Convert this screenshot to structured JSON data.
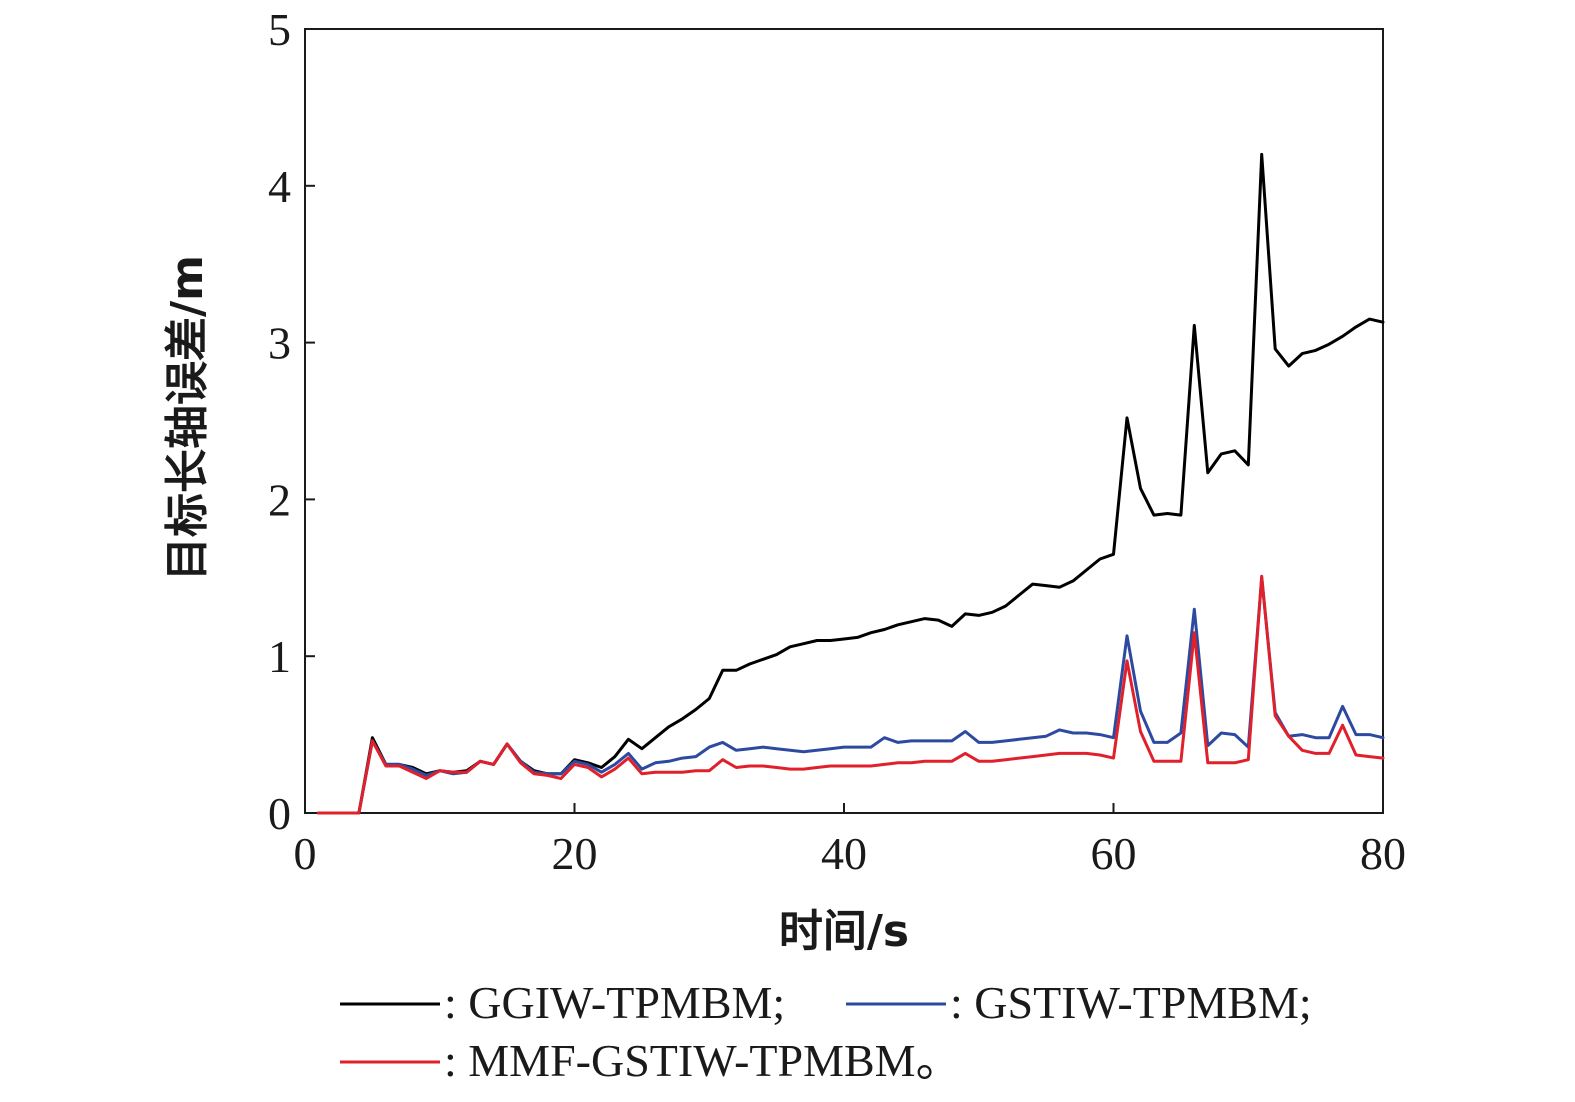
{
  "chart_data": {
    "type": "line",
    "title": "",
    "xlabel": "时间/s",
    "ylabel": "目标长轴误差/m",
    "xlim": [
      0,
      80
    ],
    "ylim": [
      0,
      5
    ],
    "xticks": [
      0,
      20,
      40,
      60,
      80
    ],
    "yticks": [
      0,
      1,
      2,
      3,
      4,
      5
    ],
    "xtick_labels": [
      "0",
      "20",
      "40",
      "60",
      "80"
    ],
    "ytick_labels": [
      "0",
      "1",
      "2",
      "3",
      "4",
      "5"
    ],
    "grid": false,
    "legend_position": "bottom",
    "x": [
      1,
      2,
      3,
      4,
      5,
      6,
      7,
      8,
      9,
      10,
      11,
      12,
      13,
      14,
      15,
      16,
      17,
      18,
      19,
      20,
      21,
      22,
      23,
      24,
      25,
      26,
      27,
      28,
      29,
      30,
      31,
      32,
      33,
      34,
      35,
      36,
      37,
      38,
      39,
      40,
      41,
      42,
      43,
      44,
      45,
      46,
      47,
      48,
      49,
      50,
      51,
      52,
      53,
      54,
      55,
      56,
      57,
      58,
      59,
      60,
      61,
      62,
      63,
      64,
      65,
      66,
      67,
      68,
      69,
      70,
      71,
      72,
      73,
      74,
      75,
      76,
      77,
      78,
      79,
      80
    ],
    "series": [
      {
        "name": "GGIW-TPMBM",
        "color": "#000000",
        "values": [
          0,
          0,
          0,
          0,
          0.48,
          0.31,
          0.31,
          0.29,
          0.25,
          0.27,
          0.26,
          0.27,
          0.33,
          0.31,
          0.44,
          0.33,
          0.27,
          0.25,
          0.25,
          0.34,
          0.32,
          0.29,
          0.36,
          0.47,
          0.41,
          0.48,
          0.55,
          0.6,
          0.66,
          0.73,
          0.91,
          0.91,
          0.95,
          0.98,
          1.01,
          1.06,
          1.08,
          1.1,
          1.1,
          1.11,
          1.12,
          1.15,
          1.17,
          1.2,
          1.22,
          1.24,
          1.23,
          1.19,
          1.27,
          1.26,
          1.28,
          1.32,
          1.39,
          1.46,
          1.45,
          1.44,
          1.48,
          1.55,
          1.62,
          1.65,
          2.52,
          2.07,
          1.9,
          1.91,
          1.9,
          3.11,
          2.17,
          2.29,
          2.31,
          2.22,
          4.2,
          2.96,
          2.85,
          2.93,
          2.95,
          2.99,
          3.04,
          3.1,
          3.15,
          3.13
        ]
      },
      {
        "name": "GSTIW-TPMBM",
        "color": "#2e4aa0",
        "values": [
          0,
          0,
          0,
          0,
          0.46,
          0.31,
          0.31,
          0.28,
          0.24,
          0.27,
          0.25,
          0.26,
          0.33,
          0.31,
          0.44,
          0.33,
          0.26,
          0.25,
          0.25,
          0.33,
          0.31,
          0.26,
          0.31,
          0.38,
          0.28,
          0.32,
          0.33,
          0.35,
          0.36,
          0.42,
          0.45,
          0.4,
          0.41,
          0.42,
          0.41,
          0.4,
          0.39,
          0.4,
          0.41,
          0.42,
          0.42,
          0.42,
          0.48,
          0.45,
          0.46,
          0.46,
          0.46,
          0.46,
          0.52,
          0.45,
          0.45,
          0.46,
          0.47,
          0.48,
          0.49,
          0.53,
          0.51,
          0.51,
          0.5,
          0.48,
          1.13,
          0.65,
          0.45,
          0.45,
          0.51,
          1.3,
          0.43,
          0.51,
          0.5,
          0.42,
          1.5,
          0.64,
          0.49,
          0.5,
          0.48,
          0.48,
          0.68,
          0.5,
          0.5,
          0.48
        ]
      },
      {
        "name": "MMF-GSTIW-TPMBM",
        "color": "#e0202a",
        "values": [
          0,
          0,
          0,
          0,
          0.46,
          0.3,
          0.3,
          0.26,
          0.22,
          0.27,
          0.26,
          0.26,
          0.33,
          0.31,
          0.44,
          0.32,
          0.25,
          0.24,
          0.22,
          0.31,
          0.29,
          0.23,
          0.28,
          0.35,
          0.25,
          0.26,
          0.26,
          0.26,
          0.27,
          0.27,
          0.34,
          0.29,
          0.3,
          0.3,
          0.29,
          0.28,
          0.28,
          0.29,
          0.3,
          0.3,
          0.3,
          0.3,
          0.31,
          0.32,
          0.32,
          0.33,
          0.33,
          0.33,
          0.38,
          0.33,
          0.33,
          0.34,
          0.35,
          0.36,
          0.37,
          0.38,
          0.38,
          0.38,
          0.37,
          0.35,
          0.97,
          0.52,
          0.33,
          0.33,
          0.33,
          1.15,
          0.32,
          0.32,
          0.32,
          0.34,
          1.51,
          0.62,
          0.49,
          0.4,
          0.38,
          0.38,
          0.56,
          0.37,
          0.36,
          0.35
        ]
      }
    ],
    "legend_entries": [
      {
        "label": ": GGIW-TPMBM;",
        "color": "#000000"
      },
      {
        "label": ": GSTIW-TPMBM;",
        "color": "#2e4aa0"
      },
      {
        "label": ": MMF-GSTIW-TPMBM。",
        "color": "#e0202a"
      }
    ]
  }
}
